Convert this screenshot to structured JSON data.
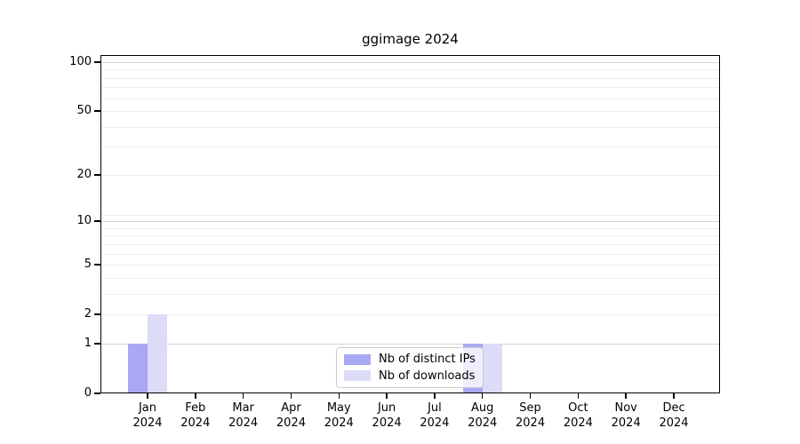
{
  "chart_data": {
    "type": "bar",
    "title": "ggimage 2024",
    "x_categories": [
      "Jan",
      "Feb",
      "Mar",
      "Apr",
      "May",
      "Jun",
      "Jul",
      "Aug",
      "Sep",
      "Oct",
      "Nov",
      "Dec"
    ],
    "x_year": "2024",
    "series": [
      {
        "name": "Nb of distinct IPs",
        "color": "#a9a9f3",
        "values": [
          1,
          0,
          0,
          0,
          0,
          0,
          0,
          1,
          0,
          0,
          0,
          0
        ]
      },
      {
        "name": "Nb of downloads",
        "color": "#dcdcf8",
        "values": [
          2,
          0,
          0,
          0,
          0,
          0,
          0,
          1,
          0,
          0,
          0,
          0
        ]
      }
    ],
    "y_scale": "log1p",
    "ylim": [
      0,
      100
    ],
    "y_ticks": [
      0,
      1,
      2,
      5,
      10,
      20,
      50,
      100
    ],
    "y_gridlines_major": [
      1,
      10,
      100
    ],
    "y_gridlines_minor": [
      2,
      3,
      4,
      5,
      6,
      7,
      8,
      9,
      11,
      20,
      30,
      40,
      50,
      60,
      70,
      80,
      90
    ],
    "grid": true,
    "legend": {
      "position": "bottom-center-inside"
    }
  },
  "colors": {
    "background": "#ffffff",
    "axis": "#000000",
    "text": "#000000",
    "gridline_major": "#d4d4d4",
    "gridline_minor": "#ececec",
    "legend_border": "#cccccc",
    "bar_distinct_ips": "#a9a9f3",
    "bar_downloads": "#dcdcf8"
  }
}
